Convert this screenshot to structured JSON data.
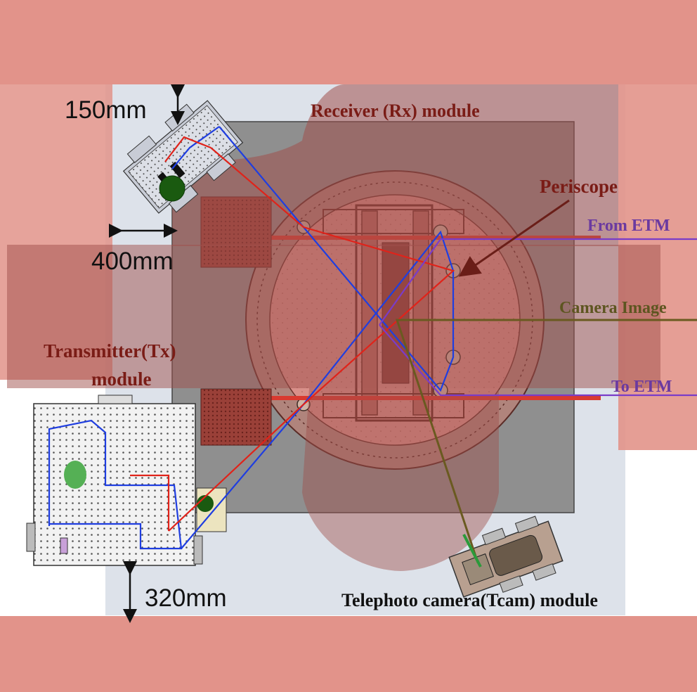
{
  "labels": {
    "rx_module": "Receiver (Rx) module",
    "tx_module_line1": "Transmitter(Tx)",
    "tx_module_line2": "module",
    "tcam_module": "Telephoto camera(Tcam) module",
    "periscope": "Periscope",
    "from_etm": "From ETM",
    "to_etm": "To ETM",
    "camera_image": "Camera Image"
  },
  "dimensions": {
    "top_gap": "150mm",
    "side_gap": "400mm",
    "bottom_gap": "320mm"
  },
  "colors": {
    "overlay_pink": "#e2938a",
    "overlay_dark": "#a0504c",
    "label_dark_red": "#7a1c16",
    "label_purple": "#6b3aa0",
    "label_olive": "#5d5520",
    "beam_red": "#e0231a",
    "beam_blue": "#1f3ee0",
    "beam_purple": "#7a3cc8",
    "beam_olive": "#6a5a20",
    "beam_green": "#2a9a3a"
  }
}
